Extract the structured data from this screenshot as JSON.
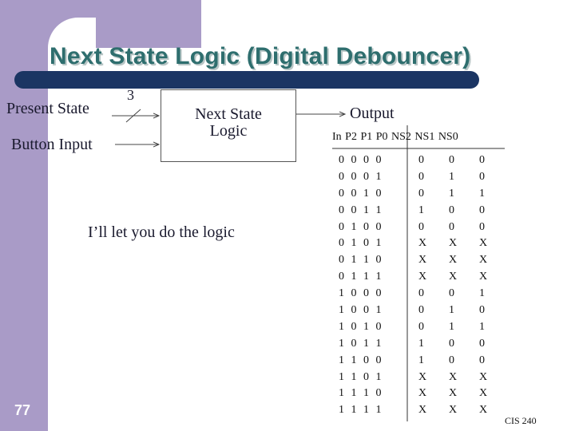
{
  "slide": {
    "title": "Next State Logic (Digital Debouncer)",
    "number": "77",
    "footer": "CIS 240"
  },
  "diagram": {
    "inputs": [
      "Present State",
      "Button Input"
    ],
    "bus_width": "3",
    "block_label_lines": [
      "Next State",
      "Logic"
    ],
    "output_label": "Output"
  },
  "message": "I’ll let you do the logic",
  "truth_table": {
    "header": "In P2 P1 P0  NS2 NS1 NS0",
    "rows": [
      {
        "in": "0 0 0 0",
        "out": [
          "0",
          "0",
          "0"
        ]
      },
      {
        "in": "0 0 0 1",
        "out": [
          "0",
          "1",
          "0"
        ]
      },
      {
        "in": "0 0 1 0",
        "out": [
          "0",
          "1",
          "1"
        ]
      },
      {
        "in": "0 0 1 1",
        "out": [
          "1",
          "0",
          "0"
        ]
      },
      {
        "in": "0 1 0 0",
        "out": [
          "0",
          "0",
          "0"
        ]
      },
      {
        "in": "0 1 0 1",
        "out": [
          "X",
          "X",
          "X"
        ]
      },
      {
        "in": "0 1 1 0",
        "out": [
          "X",
          "X",
          "X"
        ]
      },
      {
        "in": "0 1 1 1",
        "out": [
          "X",
          "X",
          "X"
        ]
      },
      {
        "in": "1 0 0 0",
        "out": [
          "0",
          "0",
          "1"
        ]
      },
      {
        "in": "1 0 0 1",
        "out": [
          "0",
          "1",
          "0"
        ]
      },
      {
        "in": "1 0 1 0",
        "out": [
          "0",
          "1",
          "1"
        ]
      },
      {
        "in": "1 0 1 1",
        "out": [
          "1",
          "0",
          "0"
        ]
      },
      {
        "in": "1 1 0 0",
        "out": [
          "1",
          "0",
          "0"
        ]
      },
      {
        "in": "1 1 0 1",
        "out": [
          "X",
          "X",
          "X"
        ]
      },
      {
        "in": "1 1 1 0",
        "out": [
          "X",
          "X",
          "X"
        ]
      },
      {
        "in": "1 1 1 1",
        "out": [
          "X",
          "X",
          "X"
        ]
      }
    ]
  }
}
